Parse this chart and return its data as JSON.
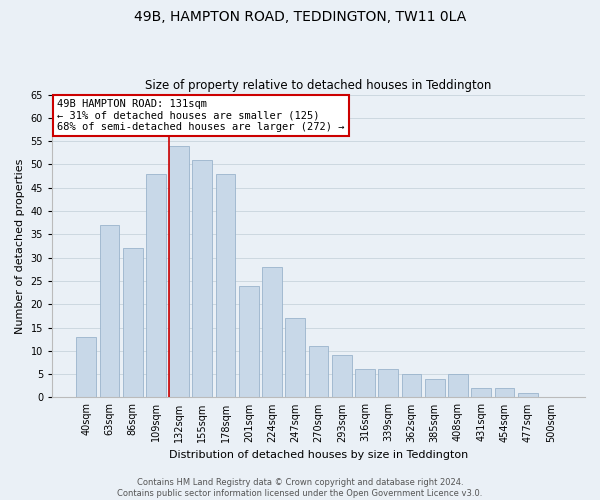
{
  "title": "49B, HAMPTON ROAD, TEDDINGTON, TW11 0LA",
  "subtitle": "Size of property relative to detached houses in Teddington",
  "xlabel": "Distribution of detached houses by size in Teddington",
  "ylabel": "Number of detached properties",
  "bar_labels": [
    "40sqm",
    "63sqm",
    "86sqm",
    "109sqm",
    "132sqm",
    "155sqm",
    "178sqm",
    "201sqm",
    "224sqm",
    "247sqm",
    "270sqm",
    "293sqm",
    "316sqm",
    "339sqm",
    "362sqm",
    "385sqm",
    "408sqm",
    "431sqm",
    "454sqm",
    "477sqm",
    "500sqm"
  ],
  "bar_values": [
    13,
    37,
    32,
    48,
    54,
    51,
    48,
    24,
    28,
    17,
    11,
    9,
    6,
    6,
    5,
    4,
    5,
    2,
    2,
    1,
    0
  ],
  "bar_color": "#c8d8e8",
  "bar_edge_color": "#9ab4cc",
  "highlight_index": 4,
  "highlight_line_color": "#cc0000",
  "annotation_text": "49B HAMPTON ROAD: 131sqm\n← 31% of detached houses are smaller (125)\n68% of semi-detached houses are larger (272) →",
  "annotation_box_color": "#ffffff",
  "annotation_box_edge": "#cc0000",
  "ylim": [
    0,
    65
  ],
  "yticks": [
    0,
    5,
    10,
    15,
    20,
    25,
    30,
    35,
    40,
    45,
    50,
    55,
    60,
    65
  ],
  "grid_color": "#c8d4dc",
  "bg_color": "#eaf0f6",
  "footer_text": "Contains HM Land Registry data © Crown copyright and database right 2024.\nContains public sector information licensed under the Open Government Licence v3.0.",
  "title_fontsize": 10,
  "subtitle_fontsize": 8.5,
  "xlabel_fontsize": 8,
  "ylabel_fontsize": 8,
  "tick_fontsize": 7,
  "annotation_fontsize": 7.5,
  "footer_fontsize": 6
}
